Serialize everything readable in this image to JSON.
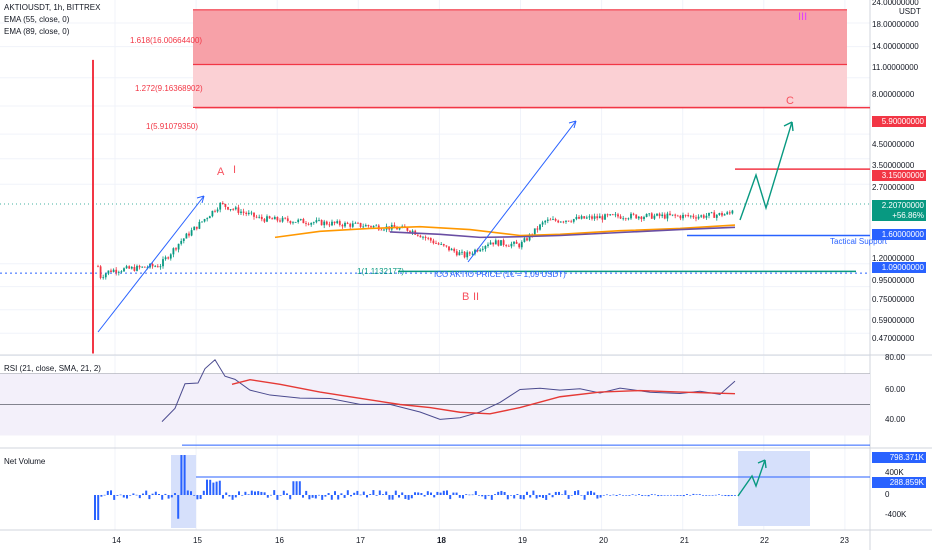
{
  "header": {
    "symbol_line": "AKTIOUSDT, 1h, BITTREX",
    "ema1": "EMA (55, close, 0)",
    "ema2": "EMA (89, close, 0)",
    "currency": "USDT"
  },
  "price_axis": {
    "ticks": [
      "24.00000000",
      "18.00000000",
      "14.00000000",
      "11.00000000",
      "8.00000000",
      "6.00000000",
      "4.50000000",
      "3.50000000",
      "2.70000000",
      "1.20000000",
      "0.95000000",
      "0.75000000",
      "0.59000000",
      "0.47000000"
    ],
    "tags": [
      {
        "text": "5.90000000",
        "color": "#f23645"
      },
      {
        "text": "3.15000000",
        "color": "#f23645"
      },
      {
        "text": "2.20700000",
        "text2": "+56.86%",
        "color": "#089981"
      },
      {
        "text": "1.60000000",
        "color": "#2962ff"
      },
      {
        "text": "1.09000000",
        "color": "#2962ff"
      }
    ]
  },
  "fib": [
    {
      "label": "1.618(16.00664400)"
    },
    {
      "label": "1.272(9.16368902)"
    },
    {
      "label": "1(5.91079350)"
    },
    {
      "label": "1(1.1132177)"
    }
  ],
  "annotations": {
    "A": "A",
    "I": "I",
    "III": "III",
    "C": "C",
    "B": "B",
    "II": "II",
    "tactical": "Tactical Support",
    "ico": "ICO AKTIO PRICE (1€ = 1,09 USDT)"
  },
  "rsi": {
    "title": "RSI (21, close, SMA, 21, 2)",
    "ticks": [
      "80.00",
      "60.00",
      "40.00"
    ]
  },
  "volume": {
    "title": "Net Volume",
    "ticks": [
      "400K",
      "0",
      "-400K"
    ],
    "tags": [
      {
        "text": "798.371K"
      },
      {
        "text": "288.859K"
      }
    ]
  },
  "time_axis": [
    "14",
    "15",
    "16",
    "17",
    "18",
    "19",
    "20",
    "21",
    "22",
    "23"
  ],
  "colors": {
    "up": "#089981",
    "down": "#f23645",
    "rsi": "#4b4b8f",
    "rsi_ma": "#e53935",
    "ema55": "#ff9800",
    "ema89": "#6a4ea3",
    "vol": "#2962ff",
    "blue": "#2962ff"
  },
  "chart_data": {
    "type": "line",
    "price_scale": "log",
    "x_labels": [
      "14",
      "15",
      "16",
      "17",
      "18",
      "19",
      "20",
      "21",
      "22",
      "23"
    ],
    "series_rsi_ylim": [
      20,
      80
    ],
    "price_levels": {
      "fib_1618": 16.006644,
      "fib_1272": 9.16368902,
      "fib_1": 5.9107935,
      "target_red_1": 5.9,
      "target_red_2": 3.15,
      "last_price": 2.207,
      "tactical_support": 1.6,
      "ico_price": 1.09
    }
  }
}
